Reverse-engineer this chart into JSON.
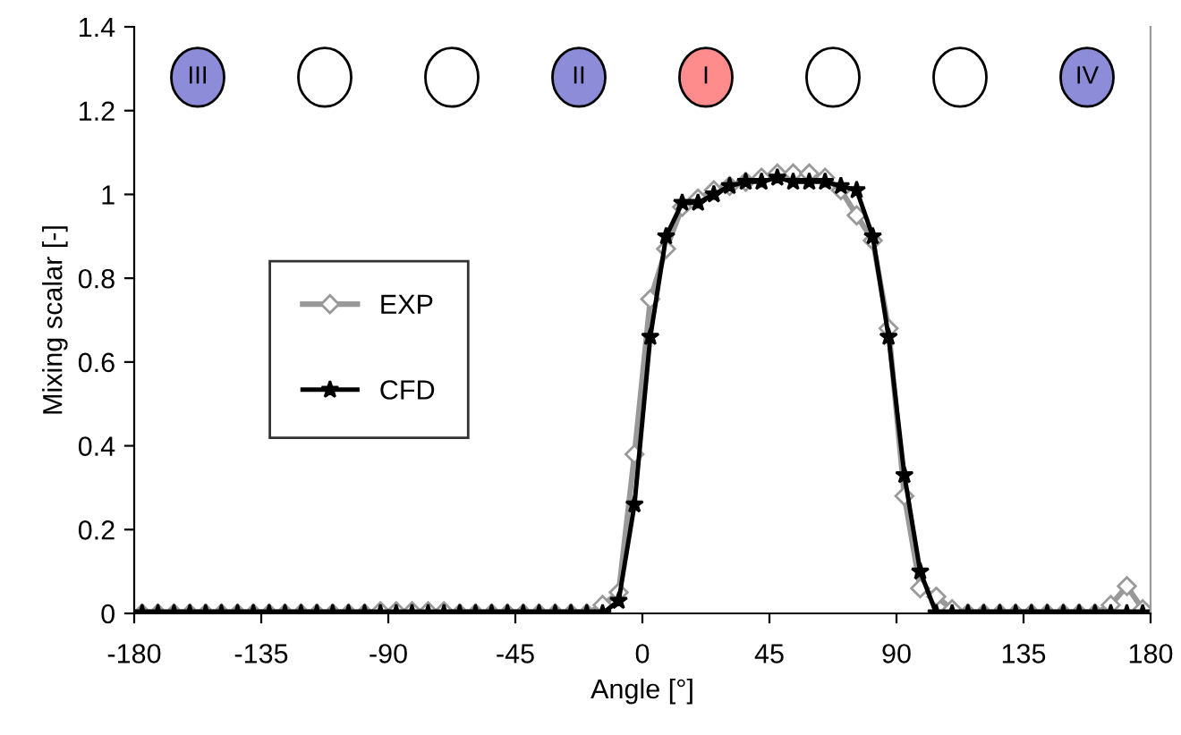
{
  "chart_data": {
    "type": "line",
    "xlabel": "Angle [°]",
    "ylabel": "Mixing scalar [-]",
    "x": [
      -177.2,
      -171.6,
      -165.9,
      -160.3,
      -154.7,
      -149.1,
      -143.4,
      -137.8,
      -132.2,
      -126.6,
      -120.9,
      -115.3,
      -109.7,
      -104.1,
      -98.4,
      -92.8,
      -87.2,
      -81.6,
      -75.9,
      -70.3,
      -64.7,
      -59.1,
      -53.4,
      -47.8,
      -42.2,
      -36.6,
      -30.9,
      -25.3,
      -19.7,
      -14.1,
      -8.4,
      -2.8,
      2.8,
      8.4,
      14.1,
      19.7,
      25.3,
      30.9,
      36.6,
      42.2,
      47.8,
      53.4,
      59.1,
      64.7,
      70.3,
      75.9,
      81.6,
      87.2,
      92.8,
      98.4,
      104.1,
      109.7,
      115.3,
      120.9,
      126.6,
      132.2,
      137.8,
      143.4,
      149.1,
      154.7,
      160.3,
      165.9,
      171.6,
      177.2
    ],
    "series": [
      {
        "name": "EXP",
        "color": "#999999",
        "marker": "diamond",
        "values": [
          0,
          0,
          0,
          0,
          0,
          0,
          0,
          0,
          0,
          0,
          0,
          0,
          0,
          0,
          0,
          0.005,
          0.005,
          0.005,
          0.005,
          0.005,
          0,
          0,
          0,
          0,
          0,
          0,
          0,
          0,
          0,
          0.02,
          0.05,
          0.38,
          0.75,
          0.87,
          0.97,
          0.99,
          1.01,
          1.02,
          1.03,
          1.04,
          1.05,
          1.05,
          1.05,
          1.04,
          1.01,
          0.95,
          0.89,
          0.68,
          0.28,
          0.06,
          0.04,
          0.01,
          0,
          0,
          0,
          0,
          0,
          0,
          0,
          0,
          0,
          0.02,
          0.065,
          0.01
        ]
      },
      {
        "name": "CFD",
        "color": "#000000",
        "marker": "star",
        "values": [
          0,
          0,
          0,
          0,
          0,
          0,
          0,
          0,
          0,
          0,
          0,
          0,
          0,
          0,
          0,
          0,
          0,
          0,
          0,
          0,
          0,
          0,
          0,
          0,
          0,
          0,
          0,
          0,
          0,
          0,
          0.03,
          0.26,
          0.66,
          0.9,
          0.98,
          0.98,
          1.0,
          1.02,
          1.03,
          1.03,
          1.04,
          1.03,
          1.03,
          1.03,
          1.02,
          1.01,
          0.9,
          0.66,
          0.33,
          0.1,
          0,
          0,
          0,
          0,
          0,
          0,
          0,
          0,
          0,
          0,
          0,
          0,
          0,
          0
        ]
      }
    ],
    "xlim": [
      -180,
      180
    ],
    "xticks": [
      -180,
      -135,
      -90,
      -45,
      0,
      45,
      90,
      135,
      180
    ],
    "ylim": [
      0,
      1.4
    ],
    "yticks": [
      0,
      0.2,
      0.4,
      0.6,
      0.8,
      1,
      1.2,
      1.4
    ],
    "grid": false,
    "legend": "center left",
    "line_style": "solid",
    "annotations": [
      {
        "text": "III",
        "x": -157.5,
        "y": 1.28
      },
      {
        "text": "II",
        "x": -22.5,
        "y": 1.28
      },
      {
        "text": "I",
        "x": 22.5,
        "y": 1.28
      },
      {
        "text": "IV",
        "x": 157.5,
        "y": 1.28
      }
    ]
  }
}
